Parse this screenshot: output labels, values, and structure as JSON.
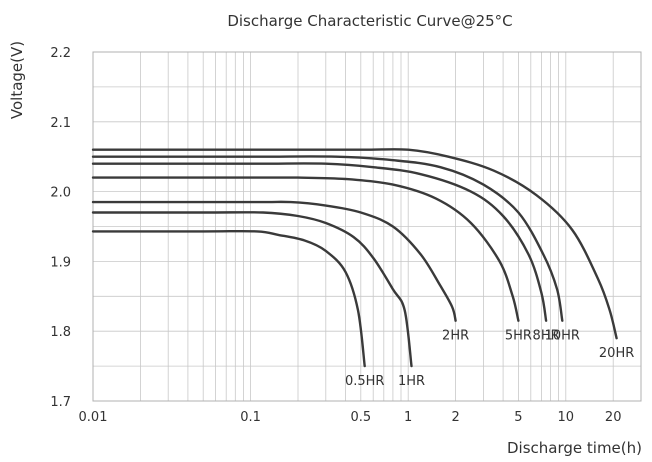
{
  "chart_data": {
    "type": "line",
    "title": "Discharge Characteristic Curve@25°C",
    "xlabel": "Discharge time(h)",
    "ylabel": "Voltage(V)",
    "xscale": "log",
    "xlim": [
      0.01,
      30
    ],
    "ylim": [
      1.7,
      2.2
    ],
    "grid": true,
    "x_ticks": [
      0.01,
      0.1,
      0.5,
      1,
      2,
      5,
      10,
      20
    ],
    "x_tick_labels": [
      "0.01",
      "0.1",
      "0.5",
      "1",
      "2",
      "5",
      "10",
      "20"
    ],
    "y_ticks": [
      1.7,
      1.8,
      1.9,
      2.0,
      2.1,
      2.2
    ],
    "y_tick_labels": [
      "1.7",
      "1.8",
      "1.9",
      "2.0",
      "2.1",
      "2.2"
    ],
    "series": [
      {
        "name": "0.5HR",
        "x": [
          0.01,
          0.05,
          0.11,
          0.15,
          0.22,
          0.3,
          0.4,
          0.48,
          0.53
        ],
        "y": [
          1.943,
          1.943,
          1.943,
          1.938,
          1.93,
          1.915,
          1.885,
          1.83,
          1.75
        ]
      },
      {
        "name": "1HR",
        "x": [
          0.01,
          0.05,
          0.12,
          0.2,
          0.3,
          0.45,
          0.6,
          0.8,
          0.95,
          1.05
        ],
        "y": [
          1.97,
          1.97,
          1.97,
          1.965,
          1.955,
          1.935,
          1.905,
          1.86,
          1.83,
          1.75
        ]
      },
      {
        "name": "2HR",
        "x": [
          0.01,
          0.1,
          0.18,
          0.3,
          0.5,
          0.8,
          1.2,
          1.6,
          1.9,
          2.0
        ],
        "y": [
          1.985,
          1.985,
          1.985,
          1.98,
          1.97,
          1.95,
          1.91,
          1.865,
          1.835,
          1.815
        ]
      },
      {
        "name": "5HR",
        "x": [
          0.01,
          0.1,
          0.2,
          0.4,
          0.8,
          1.5,
          2.5,
          3.8,
          4.6,
          5.0
        ],
        "y": [
          2.02,
          2.02,
          2.02,
          2.018,
          2.01,
          1.99,
          1.955,
          1.9,
          1.85,
          1.815
        ]
      },
      {
        "name": "8HR",
        "x": [
          0.01,
          0.1,
          0.3,
          0.6,
          1.2,
          2.5,
          4.0,
          5.8,
          7.0,
          7.5
        ],
        "y": [
          2.04,
          2.04,
          2.04,
          2.035,
          2.025,
          2.0,
          1.965,
          1.91,
          1.855,
          1.815
        ]
      },
      {
        "name": "10HR",
        "x": [
          0.01,
          0.1,
          0.35,
          0.8,
          1.6,
          3.0,
          5.0,
          7.2,
          8.8,
          9.5
        ],
        "y": [
          2.05,
          2.05,
          2.05,
          2.045,
          2.035,
          2.01,
          1.97,
          1.91,
          1.86,
          1.815
        ]
      },
      {
        "name": "20HR",
        "x": [
          0.01,
          0.1,
          0.5,
          1.0,
          1.8,
          3.5,
          6.5,
          11,
          16,
          19,
          21
        ],
        "y": [
          2.06,
          2.06,
          2.06,
          2.06,
          2.05,
          2.03,
          1.995,
          1.945,
          1.875,
          1.83,
          1.79
        ]
      }
    ]
  }
}
